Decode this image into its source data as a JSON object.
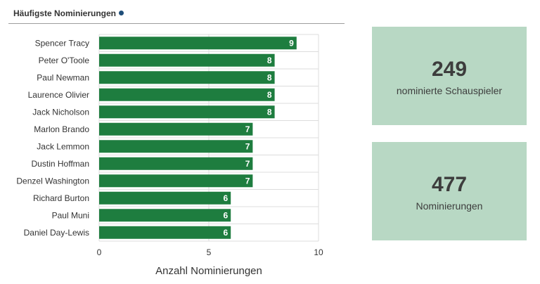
{
  "header": {
    "title": "Häufigste Nominierungen"
  },
  "colors": {
    "bar": "#1e7d3f",
    "card": "#b8d8c4",
    "accent_dot": "#1f4e79",
    "grid": "#dcdcdc"
  },
  "stats": [
    {
      "value": "249",
      "label": "nominierte Schauspieler"
    },
    {
      "value": "477",
      "label": "Nominierungen"
    }
  ],
  "chart_data": {
    "type": "bar",
    "orientation": "horizontal",
    "categories": [
      "Spencer Tracy",
      "Peter O'Toole",
      "Paul Newman",
      "Laurence Olivier",
      "Jack Nicholson",
      "Marlon Brando",
      "Jack Lemmon",
      "Dustin Hoffman",
      "Denzel Washington",
      "Richard Burton",
      "Paul Muni",
      "Daniel Day-Lewis"
    ],
    "values": [
      9,
      8,
      8,
      8,
      8,
      7,
      7,
      7,
      7,
      6,
      6,
      6
    ],
    "xlabel": "Anzahl Nominierungen",
    "xlim": [
      0,
      10
    ],
    "xticks": [
      0,
      5,
      10
    ],
    "data_labels": true,
    "grid": true
  }
}
